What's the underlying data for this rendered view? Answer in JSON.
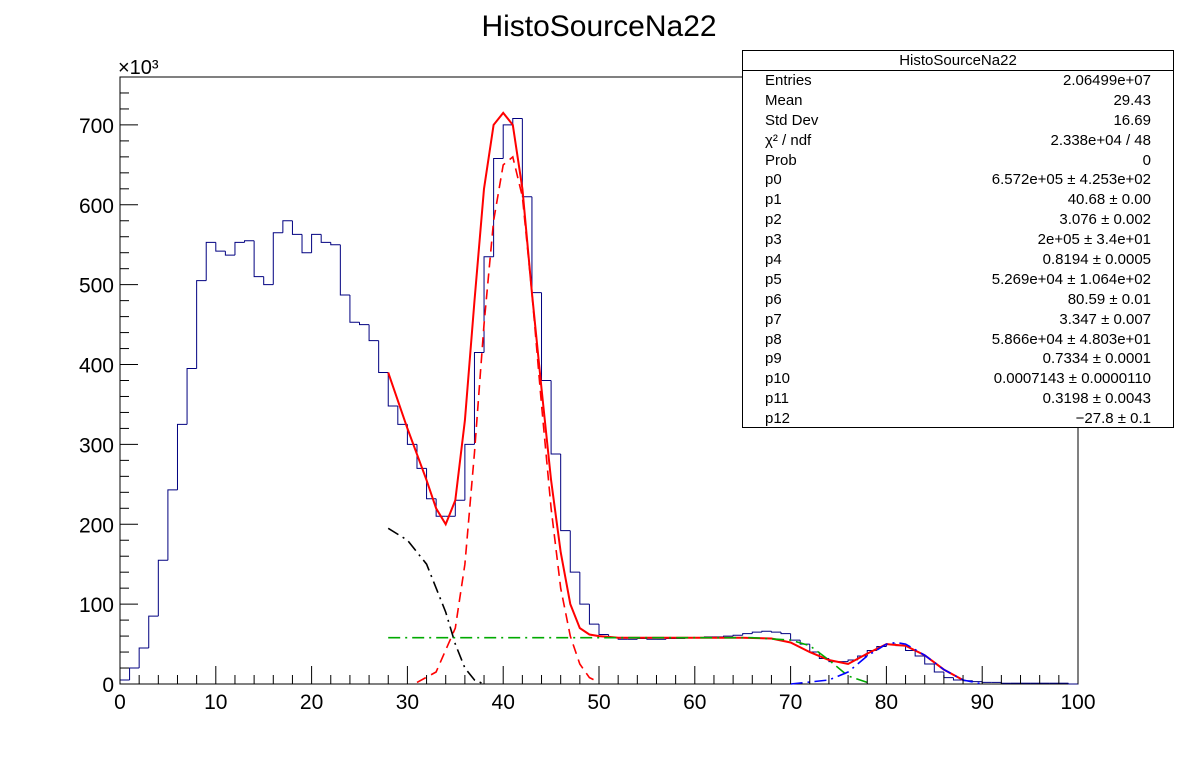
{
  "chart_data": {
    "type": "bar",
    "title": "HistoSourceNa22",
    "xlabel": "",
    "ylabel": "",
    "y_exponent_label": "×10³",
    "xlim": [
      0,
      100
    ],
    "ylim": [
      0,
      760
    ],
    "y_scale_factor": 1000,
    "xticks": [
      "0",
      "10",
      "20",
      "30",
      "40",
      "50",
      "60",
      "70",
      "80",
      "90",
      "100"
    ],
    "yticks": [
      "0",
      "100",
      "200",
      "300",
      "400",
      "500",
      "600",
      "700"
    ],
    "histogram": {
      "bin_width": 1,
      "bin_low_edges": [
        0,
        1,
        2,
        3,
        4,
        5,
        6,
        7,
        8,
        9,
        10,
        11,
        12,
        13,
        14,
        15,
        16,
        17,
        18,
        19,
        20,
        21,
        22,
        23,
        24,
        25,
        26,
        27,
        28,
        29,
        30,
        31,
        32,
        33,
        34,
        35,
        36,
        37,
        38,
        39,
        40,
        41,
        42,
        43,
        44,
        45,
        46,
        47,
        48,
        49,
        50,
        51,
        52,
        53,
        54,
        55,
        56,
        57,
        58,
        59,
        60,
        61,
        62,
        63,
        64,
        65,
        66,
        67,
        68,
        69,
        70,
        71,
        72,
        73,
        74,
        75,
        76,
        77,
        78,
        79,
        80,
        81,
        82,
        83,
        84,
        85,
        86,
        87,
        88,
        89,
        90,
        91,
        92,
        93,
        94,
        95,
        96,
        97,
        98,
        99
      ],
      "values": [
        5,
        20,
        45,
        85,
        155,
        243,
        325,
        395,
        505,
        553,
        542,
        537,
        553,
        555,
        510,
        500,
        565,
        580,
        563,
        540,
        563,
        553,
        550,
        487,
        453,
        450,
        430,
        390,
        348,
        325,
        300,
        270,
        232,
        210,
        210,
        230,
        300,
        415,
        535,
        658,
        700,
        708,
        610,
        490,
        380,
        288,
        192,
        140,
        100,
        75,
        62,
        58,
        56,
        56,
        57,
        56,
        56,
        57,
        57,
        58,
        58,
        59,
        59,
        60,
        61,
        63,
        65,
        66,
        65,
        63,
        55,
        50,
        40,
        32,
        28,
        28,
        30,
        35,
        42,
        47,
        50,
        48,
        42,
        35,
        25,
        15,
        8,
        5,
        4,
        3,
        2,
        2,
        1,
        1,
        1,
        1,
        1,
        1,
        1,
        0
      ]
    },
    "series": [
      {
        "name": "",
        "color": "#ff0000",
        "style": "solid",
        "x": [
          28,
          30,
          32,
          33,
          34,
          35,
          36,
          37,
          38,
          39,
          40,
          41,
          42,
          43,
          44,
          45,
          46,
          47,
          48,
          49,
          50,
          51,
          52,
          55,
          60,
          65,
          68,
          70,
          72,
          74,
          76,
          78,
          80,
          82,
          84,
          86,
          88
        ],
        "values": [
          390,
          320,
          255,
          220,
          200,
          230,
          330,
          480,
          620,
          700,
          715,
          700,
          620,
          490,
          370,
          255,
          165,
          100,
          70,
          62,
          60,
          59,
          58,
          58,
          58,
          58,
          57,
          52,
          40,
          30,
          25,
          38,
          50,
          48,
          36,
          18,
          5
        ]
      },
      {
        "name": "",
        "color": "#ff0000",
        "style": "dashed",
        "x": [
          31,
          33,
          35,
          36,
          37,
          38,
          39,
          40,
          41,
          42,
          43,
          44,
          45,
          46,
          47,
          48,
          49,
          50
        ],
        "values": [
          2,
          15,
          70,
          150,
          290,
          450,
          580,
          650,
          660,
          610,
          490,
          350,
          220,
          120,
          60,
          25,
          8,
          2
        ]
      },
      {
        "name": "",
        "color": "#000000",
        "style": "dashdot",
        "x": [
          28,
          30,
          32,
          34,
          35,
          36,
          37,
          38
        ],
        "values": [
          195,
          180,
          150,
          90,
          50,
          20,
          5,
          0
        ]
      },
      {
        "name": "",
        "color": "#00aa00",
        "style": "dashdot",
        "x": [
          28,
          40,
          50,
          60,
          66,
          70,
          72,
          74,
          76,
          78
        ],
        "values": [
          58,
          58,
          58,
          58,
          58,
          55,
          48,
          30,
          10,
          2
        ]
      },
      {
        "name": "",
        "color": "#0000ff",
        "style": "dashdot",
        "x": [
          70,
          74,
          76,
          78,
          80,
          81,
          82,
          84,
          86,
          88,
          90
        ],
        "values": [
          0,
          5,
          15,
          35,
          50,
          52,
          50,
          36,
          18,
          5,
          0
        ]
      }
    ]
  },
  "stats_box": {
    "title": "HistoSourceNa22",
    "rows": [
      {
        "name": "Entries",
        "value": "2.06499e+07"
      },
      {
        "name": "Mean",
        "value": "29.43"
      },
      {
        "name": "Std Dev",
        "value": "16.69"
      },
      {
        "name": "χ² / ndf",
        "value": "2.338e+04 / 48"
      },
      {
        "name": "Prob",
        "value": "0"
      },
      {
        "name": "p0",
        "value": "6.572e+05 ± 4.253e+02"
      },
      {
        "name": "p1",
        "value": "40.68 ± 0.00"
      },
      {
        "name": "p2",
        "value": "3.076 ± 0.002"
      },
      {
        "name": "p3",
        "value": "2e+05 ± 3.4e+01"
      },
      {
        "name": "p4",
        "value": "0.8194 ± 0.0005"
      },
      {
        "name": "p5",
        "value": "5.269e+04 ± 1.064e+02"
      },
      {
        "name": "p6",
        "value": "80.59 ± 0.01"
      },
      {
        "name": "p7",
        "value": "3.347 ± 0.007"
      },
      {
        "name": "p8",
        "value": "5.866e+04 ± 4.803e+01"
      },
      {
        "name": "p9",
        "value": "0.7334 ± 0.0001"
      },
      {
        "name": "p10",
        "value": "0.0007143 ± 0.0000110"
      },
      {
        "name": "p11",
        "value": "0.3198 ± 0.0043"
      },
      {
        "name": "p12",
        "value": "−27.8 ± 0.1"
      }
    ]
  }
}
